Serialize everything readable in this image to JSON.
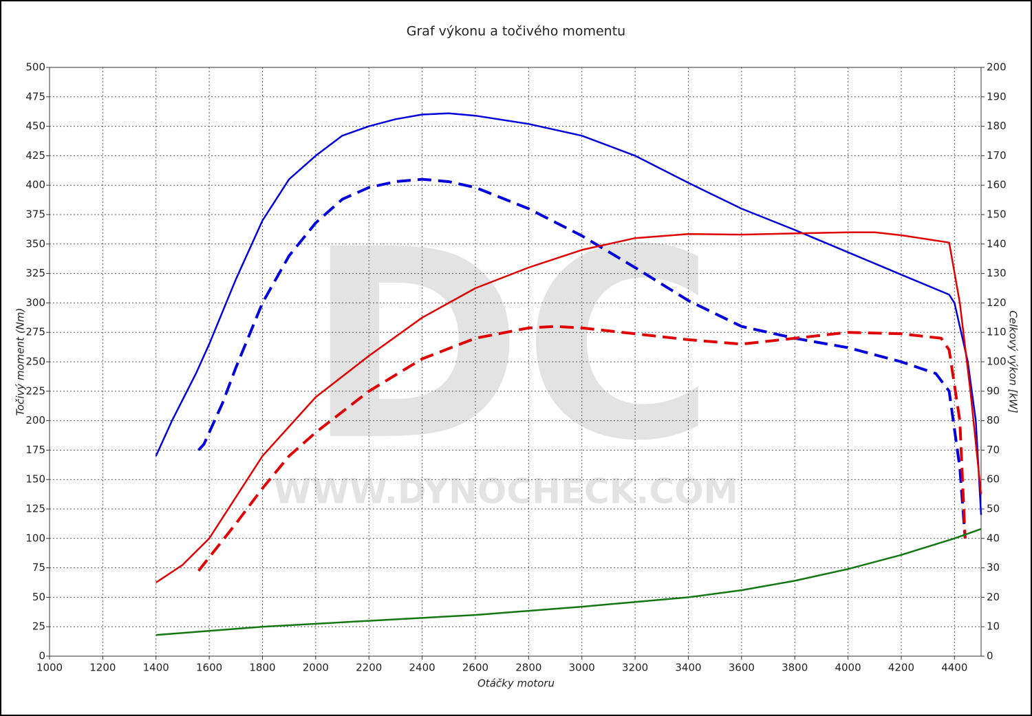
{
  "chart_data": {
    "type": "line",
    "title": "Graf výkonu a točivého momentu",
    "x_label": "Otáčky motoru",
    "y_label": "Točivý moment (Nm)",
    "y2_label": "Celkový výkon [kW]",
    "watermark": "DC",
    "watermark_url": "WWW.DYNOCHECK.COM",
    "xlim": [
      1000,
      4500
    ],
    "xticks": [
      1000,
      1200,
      1400,
      1600,
      1800,
      2000,
      2200,
      2400,
      2600,
      2800,
      3000,
      3200,
      3400,
      3600,
      3800,
      4000,
      4200,
      4400
    ],
    "ylim": [
      0,
      500
    ],
    "yticks": [
      0,
      25,
      50,
      75,
      100,
      125,
      150,
      175,
      200,
      225,
      250,
      275,
      300,
      325,
      350,
      375,
      400,
      425,
      450,
      475,
      500
    ],
    "y2lim": [
      0,
      200
    ],
    "y2ticks": [
      0,
      10,
      20,
      30,
      40,
      50,
      60,
      70,
      80,
      90,
      100,
      110,
      120,
      130,
      140,
      150,
      160,
      170,
      180,
      190,
      200
    ],
    "grid": true,
    "series": [
      {
        "color": "#0000dd",
        "dash": false,
        "x": [
          1400,
          1460,
          1550,
          1600,
          1700,
          1800,
          1900,
          2000,
          2100,
          2200,
          2300,
          2400,
          2500,
          2600,
          2800,
          3000,
          3200,
          3400,
          3600,
          3800,
          4000,
          4200,
          4380,
          4400,
          4450,
          4480,
          4500
        ],
        "values": [
          170,
          200,
          240,
          265,
          320,
          370,
          405,
          425,
          442,
          450,
          456,
          460,
          461,
          459,
          452,
          442,
          425,
          402,
          380,
          362,
          343,
          324,
          307,
          300,
          250,
          200,
          120
        ]
      },
      {
        "color": "#0000dd",
        "dash": true,
        "x": [
          1560,
          1580,
          1650,
          1700,
          1800,
          1900,
          2000,
          2100,
          2200,
          2300,
          2400,
          2500,
          2600,
          2800,
          3000,
          3200,
          3400,
          3600,
          3800,
          4000,
          4200,
          4330,
          4380,
          4420,
          4440
        ],
        "values": [
          175,
          180,
          215,
          245,
          300,
          340,
          368,
          388,
          398,
          403,
          405,
          403,
          398,
          380,
          357,
          330,
          302,
          280,
          270,
          262,
          250,
          240,
          225,
          160,
          100
        ]
      },
      {
        "color": "#e00000",
        "dash": false,
        "axis": "y2",
        "x": [
          1400,
          1500,
          1600,
          1800,
          2000,
          2200,
          2400,
          2600,
          2800,
          3000,
          3200,
          3400,
          3600,
          3800,
          4000,
          4100,
          4200,
          4380,
          4420,
          4460,
          4500
        ],
        "values": [
          25,
          31,
          40,
          68,
          88,
          102,
          115,
          125,
          132,
          138,
          142,
          143.4,
          143.2,
          143.6,
          144,
          144,
          143,
          140.5,
          120,
          90,
          55
        ]
      },
      {
        "color": "#e00000",
        "dash": true,
        "axis": "y2",
        "x": [
          1560,
          1700,
          1800,
          1900,
          2000,
          2200,
          2400,
          2600,
          2800,
          2900,
          3000,
          3200,
          3400,
          3600,
          3800,
          4000,
          4200,
          4350,
          4380,
          4420,
          4440
        ],
        "values": [
          29,
          45,
          57,
          68,
          76,
          90,
          101,
          108,
          111.5,
          112,
          111.5,
          109.5,
          107.5,
          106,
          108,
          110,
          109.5,
          108,
          104,
          80,
          40
        ]
      },
      {
        "color": "#117711",
        "dash": false,
        "x": [
          1400,
          1800,
          2200,
          2600,
          3000,
          3200,
          3400,
          3600,
          3800,
          4000,
          4200,
          4400,
          4500
        ],
        "values": [
          18,
          25,
          30,
          35,
          42,
          46,
          50,
          56,
          64,
          74,
          86,
          100,
          108
        ]
      }
    ]
  }
}
